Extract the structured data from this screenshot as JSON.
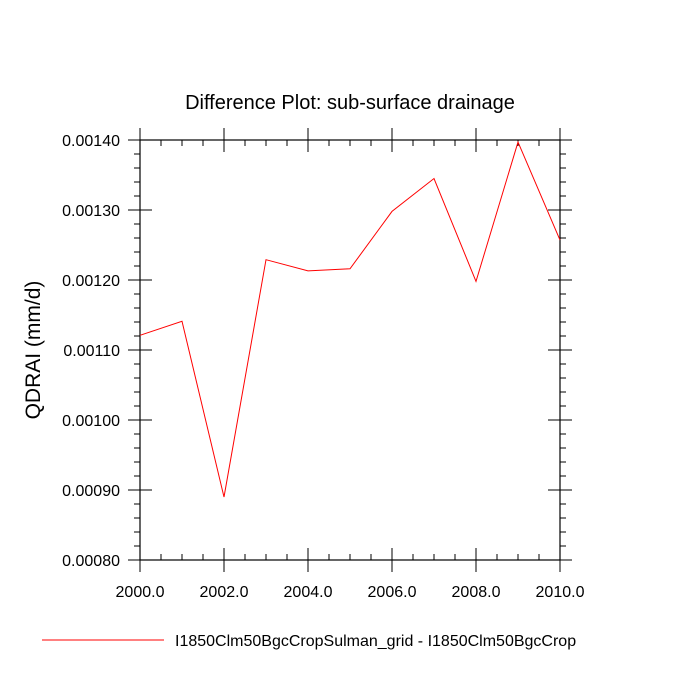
{
  "chart_data": {
    "type": "line",
    "title": "Difference Plot: sub-surface drainage",
    "xlabel": "",
    "ylabel": "QDRAI  (mm/d)",
    "xlim": [
      2000,
      2010
    ],
    "ylim": [
      0.0008,
      0.0014
    ],
    "x_ticks": [
      "2000.0",
      "2002.0",
      "2004.0",
      "2006.0",
      "2008.0",
      "2010.0"
    ],
    "y_ticks": [
      "0.00080",
      "0.00090",
      "0.00100",
      "0.00110",
      "0.00120",
      "0.00130",
      "0.00140"
    ],
    "grid": false,
    "legend_position": "bottom",
    "series": [
      {
        "name": "I1850Clm50BgcCropSulman_grid - I1850Clm50BgcCrop",
        "color": "#ff0000",
        "x": [
          2000,
          2001,
          2002,
          2003,
          2004,
          2005,
          2006,
          2007,
          2008,
          2009,
          2010
        ],
        "y": [
          0.001121,
          0.001141,
          0.00089,
          0.001229,
          0.001213,
          0.001216,
          0.001298,
          0.001345,
          0.001198,
          0.001397,
          0.001257
        ]
      }
    ]
  }
}
